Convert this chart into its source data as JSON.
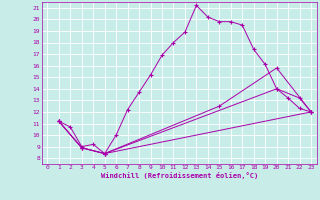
{
  "xlabel": "Windchill (Refroidissement éolien,°C)",
  "background_color": "#c8ece8",
  "grid_color": "#b0d8d4",
  "line_color": "#aa00aa",
  "xlim": [
    -0.5,
    23.5
  ],
  "ylim": [
    7.5,
    21.5
  ],
  "xticks": [
    0,
    1,
    2,
    3,
    4,
    5,
    6,
    7,
    8,
    9,
    10,
    11,
    12,
    13,
    14,
    15,
    16,
    17,
    18,
    19,
    20,
    21,
    22,
    23
  ],
  "yticks": [
    8,
    9,
    10,
    11,
    12,
    13,
    14,
    15,
    16,
    17,
    18,
    19,
    20,
    21
  ],
  "series": [
    [
      [
        1,
        11.2
      ],
      [
        2,
        10.7
      ],
      [
        3,
        9.0
      ],
      [
        4,
        9.2
      ],
      [
        5,
        8.4
      ],
      [
        6,
        10.0
      ],
      [
        7,
        12.2
      ],
      [
        8,
        13.7
      ],
      [
        9,
        15.2
      ],
      [
        10,
        16.9
      ],
      [
        11,
        18.0
      ],
      [
        12,
        18.9
      ],
      [
        13,
        21.2
      ],
      [
        14,
        20.2
      ],
      [
        15,
        19.8
      ],
      [
        16,
        19.8
      ],
      [
        17,
        19.5
      ],
      [
        18,
        17.4
      ],
      [
        19,
        16.1
      ],
      [
        20,
        14.0
      ],
      [
        21,
        13.2
      ],
      [
        22,
        12.3
      ],
      [
        23,
        12.0
      ]
    ],
    [
      [
        1,
        11.2
      ],
      [
        3,
        8.9
      ],
      [
        5,
        8.4
      ],
      [
        23,
        12.0
      ]
    ],
    [
      [
        1,
        11.2
      ],
      [
        3,
        8.9
      ],
      [
        5,
        8.4
      ],
      [
        20,
        14.0
      ],
      [
        22,
        13.2
      ],
      [
        23,
        12.0
      ]
    ],
    [
      [
        1,
        11.2
      ],
      [
        3,
        8.9
      ],
      [
        5,
        8.4
      ],
      [
        15,
        12.5
      ],
      [
        20,
        15.8
      ],
      [
        23,
        12.0
      ]
    ]
  ]
}
